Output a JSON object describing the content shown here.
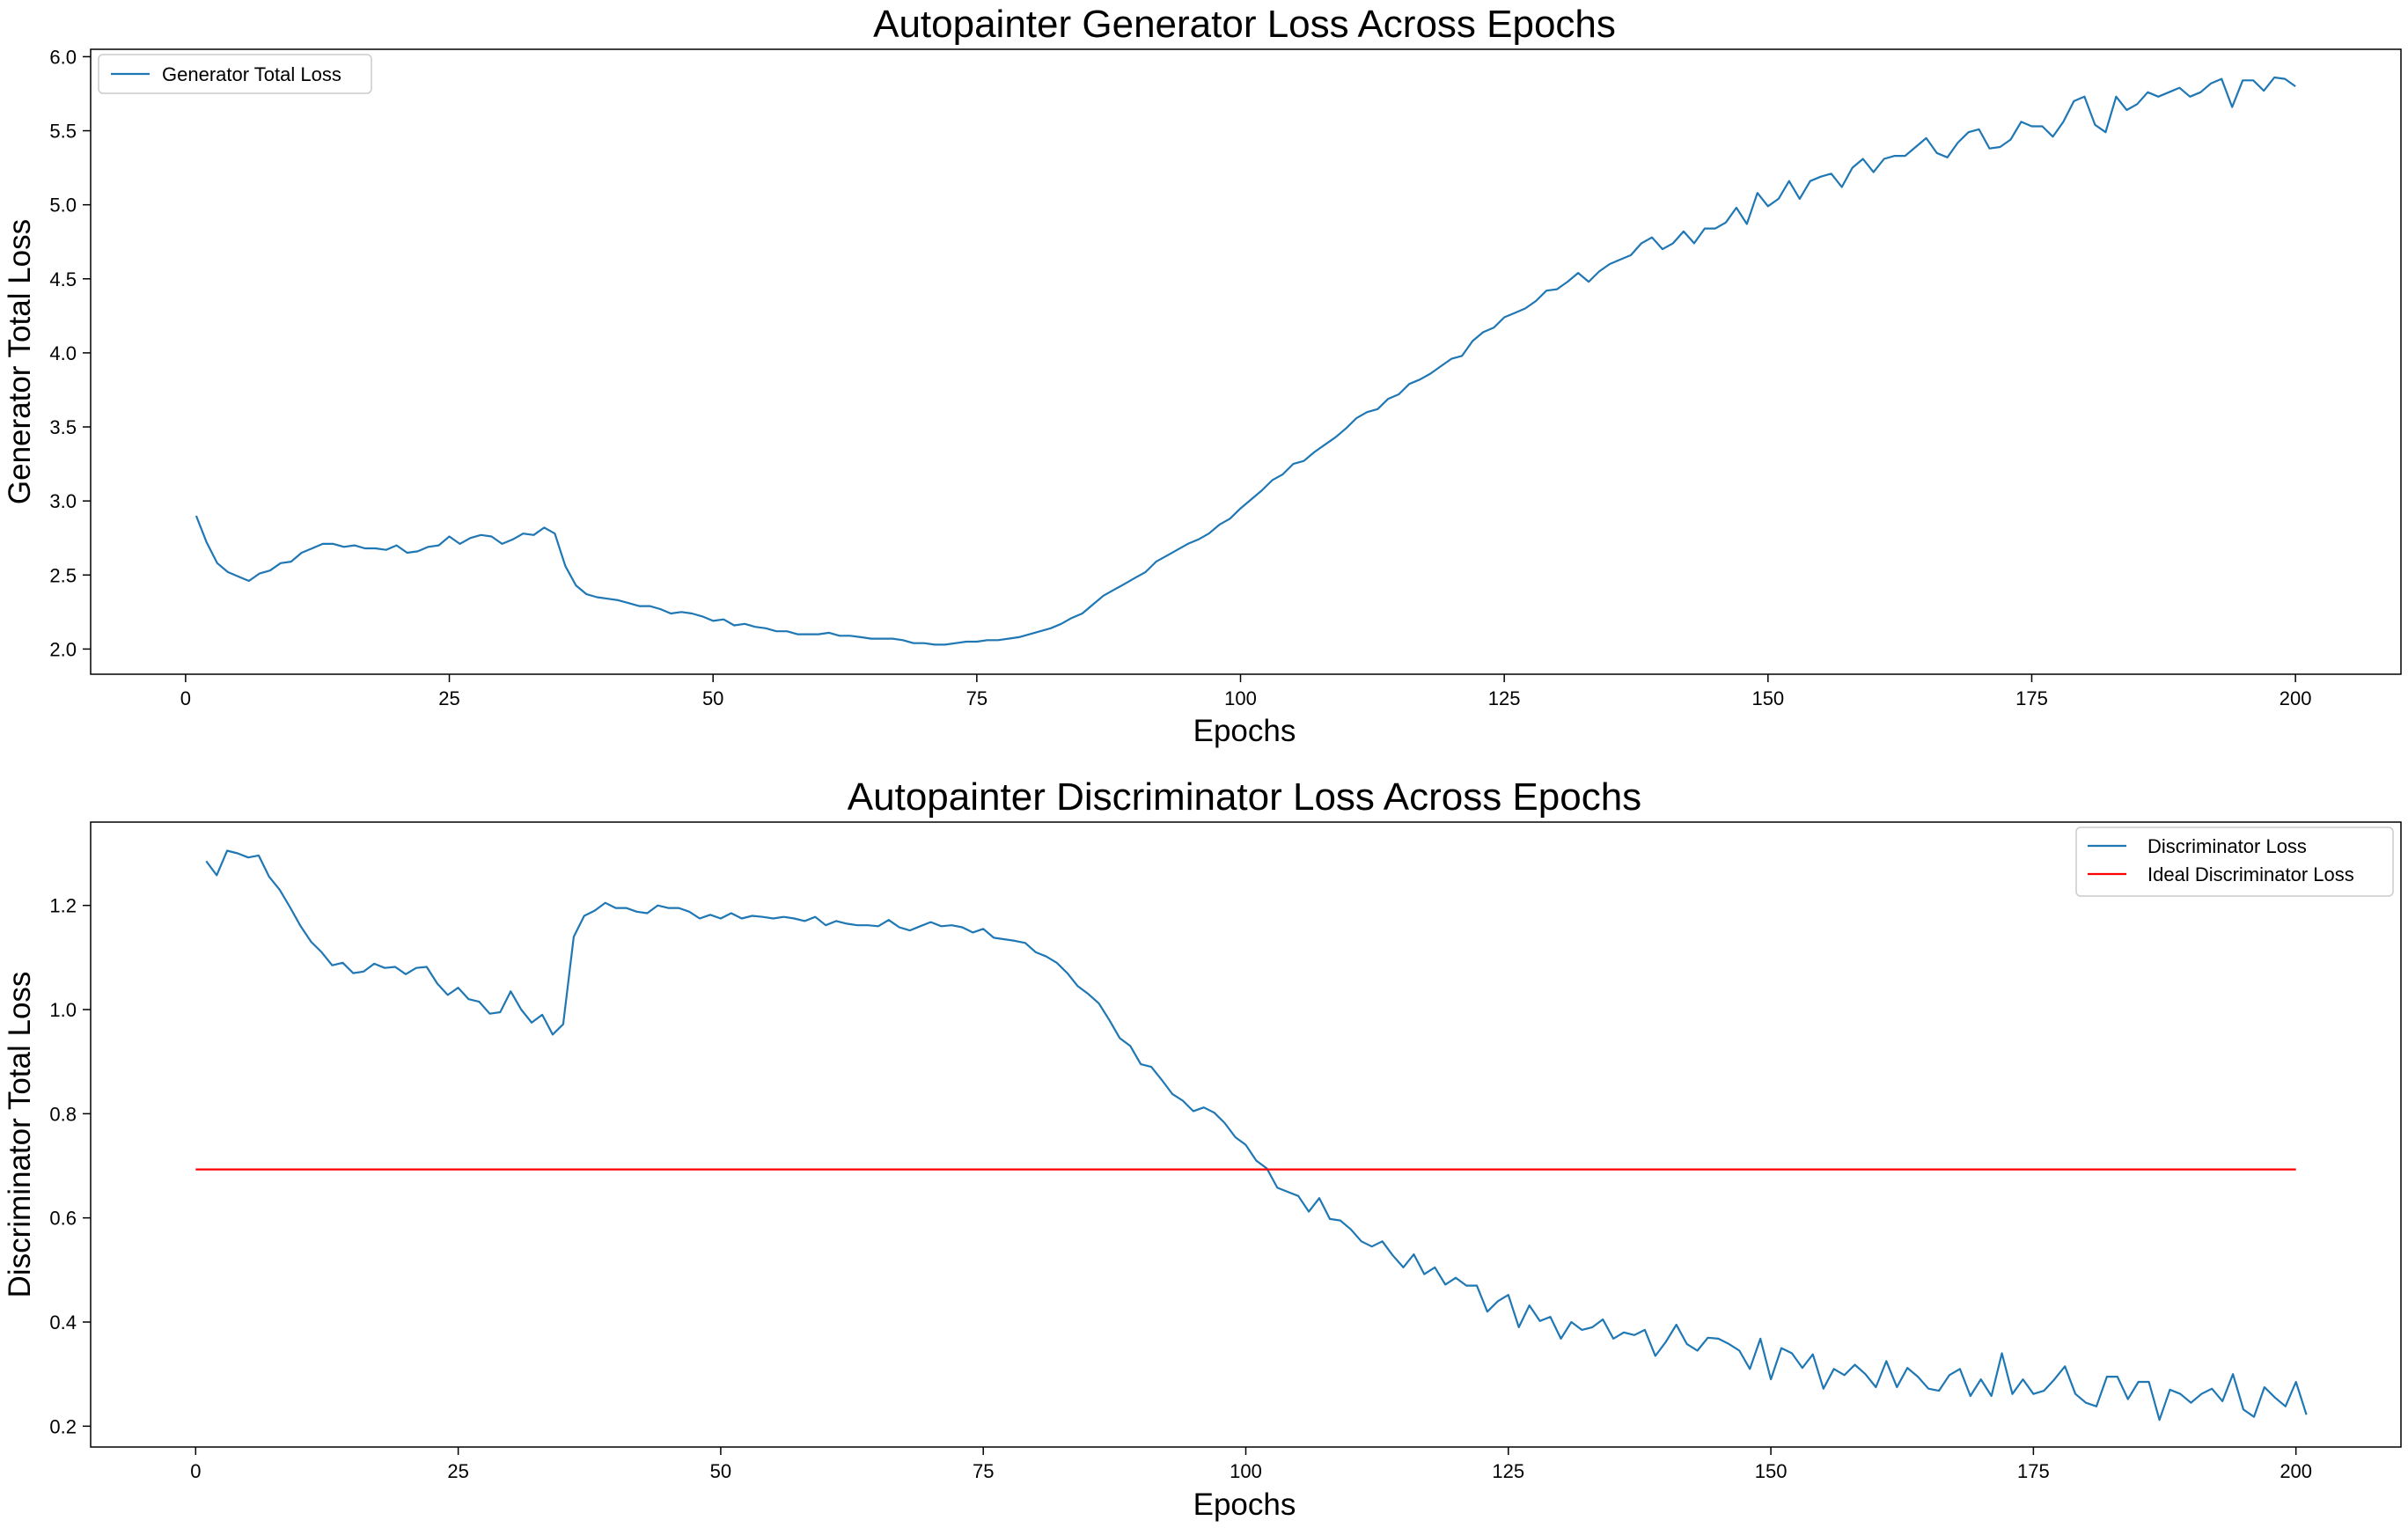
{
  "chart_data": [
    {
      "type": "line",
      "title": "Autopainter Generator Loss Across Epochs",
      "xlabel": "Epochs",
      "ylabel": "Generator Total Loss",
      "xlim": [
        -9,
        210
      ],
      "ylim": [
        1.83,
        6.05
      ],
      "xticks": [
        0,
        25,
        50,
        75,
        100,
        125,
        150,
        175,
        200
      ],
      "yticks": [
        2.0,
        2.5,
        3.0,
        3.5,
        4.0,
        4.5,
        5.0,
        5.5,
        6.0
      ],
      "legend": "top-left",
      "grid": false,
      "series": [
        {
          "name": "Generator Total Loss",
          "color": "#1f77b4",
          "x_start": 1,
          "values": [
            2.9,
            2.72,
            2.58,
            2.52,
            2.49,
            2.46,
            2.51,
            2.53,
            2.58,
            2.59,
            2.65,
            2.68,
            2.71,
            2.71,
            2.69,
            2.7,
            2.68,
            2.68,
            2.67,
            2.7,
            2.65,
            2.66,
            2.69,
            2.7,
            2.76,
            2.71,
            2.75,
            2.77,
            2.76,
            2.71,
            2.74,
            2.78,
            2.77,
            2.82,
            2.78,
            2.56,
            2.43,
            2.37,
            2.35,
            2.34,
            2.33,
            2.31,
            2.29,
            2.29,
            2.27,
            2.24,
            2.25,
            2.24,
            2.22,
            2.19,
            2.2,
            2.16,
            2.17,
            2.15,
            2.14,
            2.12,
            2.12,
            2.1,
            2.1,
            2.1,
            2.11,
            2.09,
            2.09,
            2.08,
            2.07,
            2.07,
            2.07,
            2.06,
            2.04,
            2.04,
            2.03,
            2.03,
            2.04,
            2.05,
            2.05,
            2.06,
            2.06,
            2.07,
            2.08,
            2.1,
            2.12,
            2.14,
            2.17,
            2.21,
            2.24,
            2.3,
            2.36,
            2.4,
            2.44,
            2.48,
            2.52,
            2.59,
            2.63,
            2.67,
            2.71,
            2.74,
            2.78,
            2.84,
            2.88,
            2.95,
            3.01,
            3.07,
            3.14,
            3.18,
            3.25,
            3.27,
            3.33,
            3.38,
            3.43,
            3.49,
            3.56,
            3.6,
            3.62,
            3.69,
            3.72,
            3.79,
            3.82,
            3.86,
            3.91,
            3.96,
            3.98,
            4.08,
            4.14,
            4.17,
            4.24,
            4.27,
            4.3,
            4.35,
            4.42,
            4.43,
            4.48,
            4.54,
            4.48,
            4.55,
            4.6,
            4.63,
            4.66,
            4.74,
            4.78,
            4.7,
            4.74,
            4.82,
            4.74,
            4.84,
            4.84,
            4.88,
            4.98,
            4.87,
            5.08,
            4.99,
            5.04,
            5.16,
            5.04,
            5.16,
            5.19,
            5.21,
            5.12,
            5.25,
            5.31,
            5.22,
            5.31,
            5.33,
            5.33,
            5.39,
            5.45,
            5.35,
            5.32,
            5.42,
            5.49,
            5.51,
            5.38,
            5.39,
            5.44,
            5.56,
            5.53,
            5.53,
            5.46,
            5.56,
            5.7,
            5.73,
            5.54,
            5.49,
            5.73,
            5.64,
            5.68,
            5.76,
            5.73,
            5.76,
            5.79,
            5.73,
            5.76,
            5.82,
            5.85,
            5.66,
            5.84,
            5.84,
            5.77,
            5.86,
            5.85,
            5.8
          ]
        }
      ]
    },
    {
      "type": "line",
      "title": "Autopainter Discriminator Loss Across Epochs",
      "xlabel": "Epochs",
      "ylabel": "Discriminator Total Loss",
      "xlim": [
        -10,
        210
      ],
      "ylim": [
        0.16,
        1.36
      ],
      "xticks": [
        0,
        25,
        50,
        75,
        100,
        125,
        150,
        175,
        200
      ],
      "yticks": [
        0.2,
        0.4,
        0.6,
        0.8,
        1.0,
        1.2
      ],
      "legend": "top-right",
      "grid": false,
      "series": [
        {
          "name": "Discriminator Loss",
          "color": "#1f77b4",
          "x_start": 1,
          "values": [
            1.285,
            1.258,
            1.305,
            1.3,
            1.292,
            1.296,
            1.255,
            1.23,
            1.196,
            1.16,
            1.13,
            1.11,
            1.085,
            1.09,
            1.07,
            1.073,
            1.088,
            1.08,
            1.082,
            1.068,
            1.08,
            1.082,
            1.05,
            1.028,
            1.042,
            1.02,
            1.015,
            0.992,
            0.995,
            1.035,
            1.0,
            0.975,
            0.99,
            0.952,
            0.972,
            1.14,
            1.18,
            1.19,
            1.205,
            1.195,
            1.195,
            1.188,
            1.185,
            1.2,
            1.195,
            1.195,
            1.188,
            1.175,
            1.182,
            1.175,
            1.185,
            1.175,
            1.18,
            1.178,
            1.175,
            1.178,
            1.175,
            1.17,
            1.178,
            1.162,
            1.17,
            1.165,
            1.162,
            1.162,
            1.16,
            1.172,
            1.158,
            1.152,
            1.16,
            1.168,
            1.16,
            1.162,
            1.158,
            1.148,
            1.155,
            1.138,
            1.135,
            1.132,
            1.128,
            1.11,
            1.102,
            1.09,
            1.07,
            1.045,
            1.03,
            1.012,
            0.98,
            0.945,
            0.93,
            0.895,
            0.89,
            0.865,
            0.838,
            0.825,
            0.805,
            0.812,
            0.802,
            0.782,
            0.755,
            0.74,
            0.71,
            0.695,
            0.658,
            0.65,
            0.642,
            0.612,
            0.638,
            0.598,
            0.595,
            0.578,
            0.555,
            0.545,
            0.555,
            0.528,
            0.505,
            0.53,
            0.492,
            0.505,
            0.472,
            0.485,
            0.47,
            0.47,
            0.42,
            0.44,
            0.452,
            0.39,
            0.432,
            0.402,
            0.41,
            0.368,
            0.4,
            0.385,
            0.39,
            0.405,
            0.368,
            0.38,
            0.375,
            0.385,
            0.335,
            0.362,
            0.395,
            0.358,
            0.345,
            0.37,
            0.368,
            0.358,
            0.345,
            0.31,
            0.368,
            0.29,
            0.35,
            0.34,
            0.312,
            0.338,
            0.272,
            0.31,
            0.298,
            0.318,
            0.3,
            0.275,
            0.325,
            0.275,
            0.312,
            0.295,
            0.272,
            0.268,
            0.298,
            0.31,
            0.258,
            0.29,
            0.258,
            0.34,
            0.262,
            0.29,
            0.262,
            0.268,
            0.29,
            0.315,
            0.262,
            0.245,
            0.238,
            0.295,
            0.295,
            0.252,
            0.285,
            0.285,
            0.212,
            0.27,
            0.262,
            0.245,
            0.262,
            0.272,
            0.248,
            0.3,
            0.232,
            0.218,
            0.275,
            0.255,
            0.238,
            0.285,
            0.222
          ]
        },
        {
          "name": "Ideal Discriminator Loss",
          "color": "#ff0000",
          "x": [
            0,
            200
          ],
          "values": [
            0.693,
            0.693
          ]
        }
      ]
    }
  ]
}
